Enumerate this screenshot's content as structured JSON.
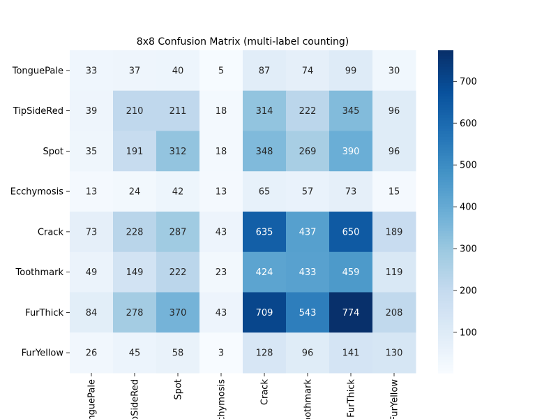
{
  "chart_data": {
    "type": "heatmap",
    "title": "8x8 Confusion Matrix (multi-label counting)",
    "xlabel": "",
    "ylabel": "",
    "row_labels": [
      "TonguePale",
      "TipSideRed",
      "Spot",
      "Ecchymosis",
      "Crack",
      "Toothmark",
      "FurThick",
      "FurYellow"
    ],
    "col_labels": [
      "TonguePale",
      "TipSideRed",
      "Spot",
      "Ecchymosis",
      "Crack",
      "Toothmark",
      "FurThick",
      "FurYellow"
    ],
    "values": [
      [
        33,
        37,
        40,
        5,
        87,
        74,
        99,
        30
      ],
      [
        39,
        210,
        211,
        18,
        314,
        222,
        345,
        96
      ],
      [
        35,
        191,
        312,
        18,
        348,
        269,
        390,
        96
      ],
      [
        13,
        24,
        42,
        13,
        65,
        57,
        73,
        15
      ],
      [
        73,
        228,
        287,
        43,
        635,
        437,
        650,
        189
      ],
      [
        49,
        149,
        222,
        23,
        424,
        433,
        459,
        119
      ],
      [
        84,
        278,
        370,
        43,
        709,
        543,
        774,
        208
      ],
      [
        26,
        45,
        58,
        3,
        128,
        96,
        141,
        130
      ]
    ],
    "colorscale": "Blues",
    "vmin": 3,
    "vmax": 774,
    "colorbar_ticks": [
      100,
      200,
      300,
      400,
      500,
      600,
      700
    ],
    "grid": false
  }
}
